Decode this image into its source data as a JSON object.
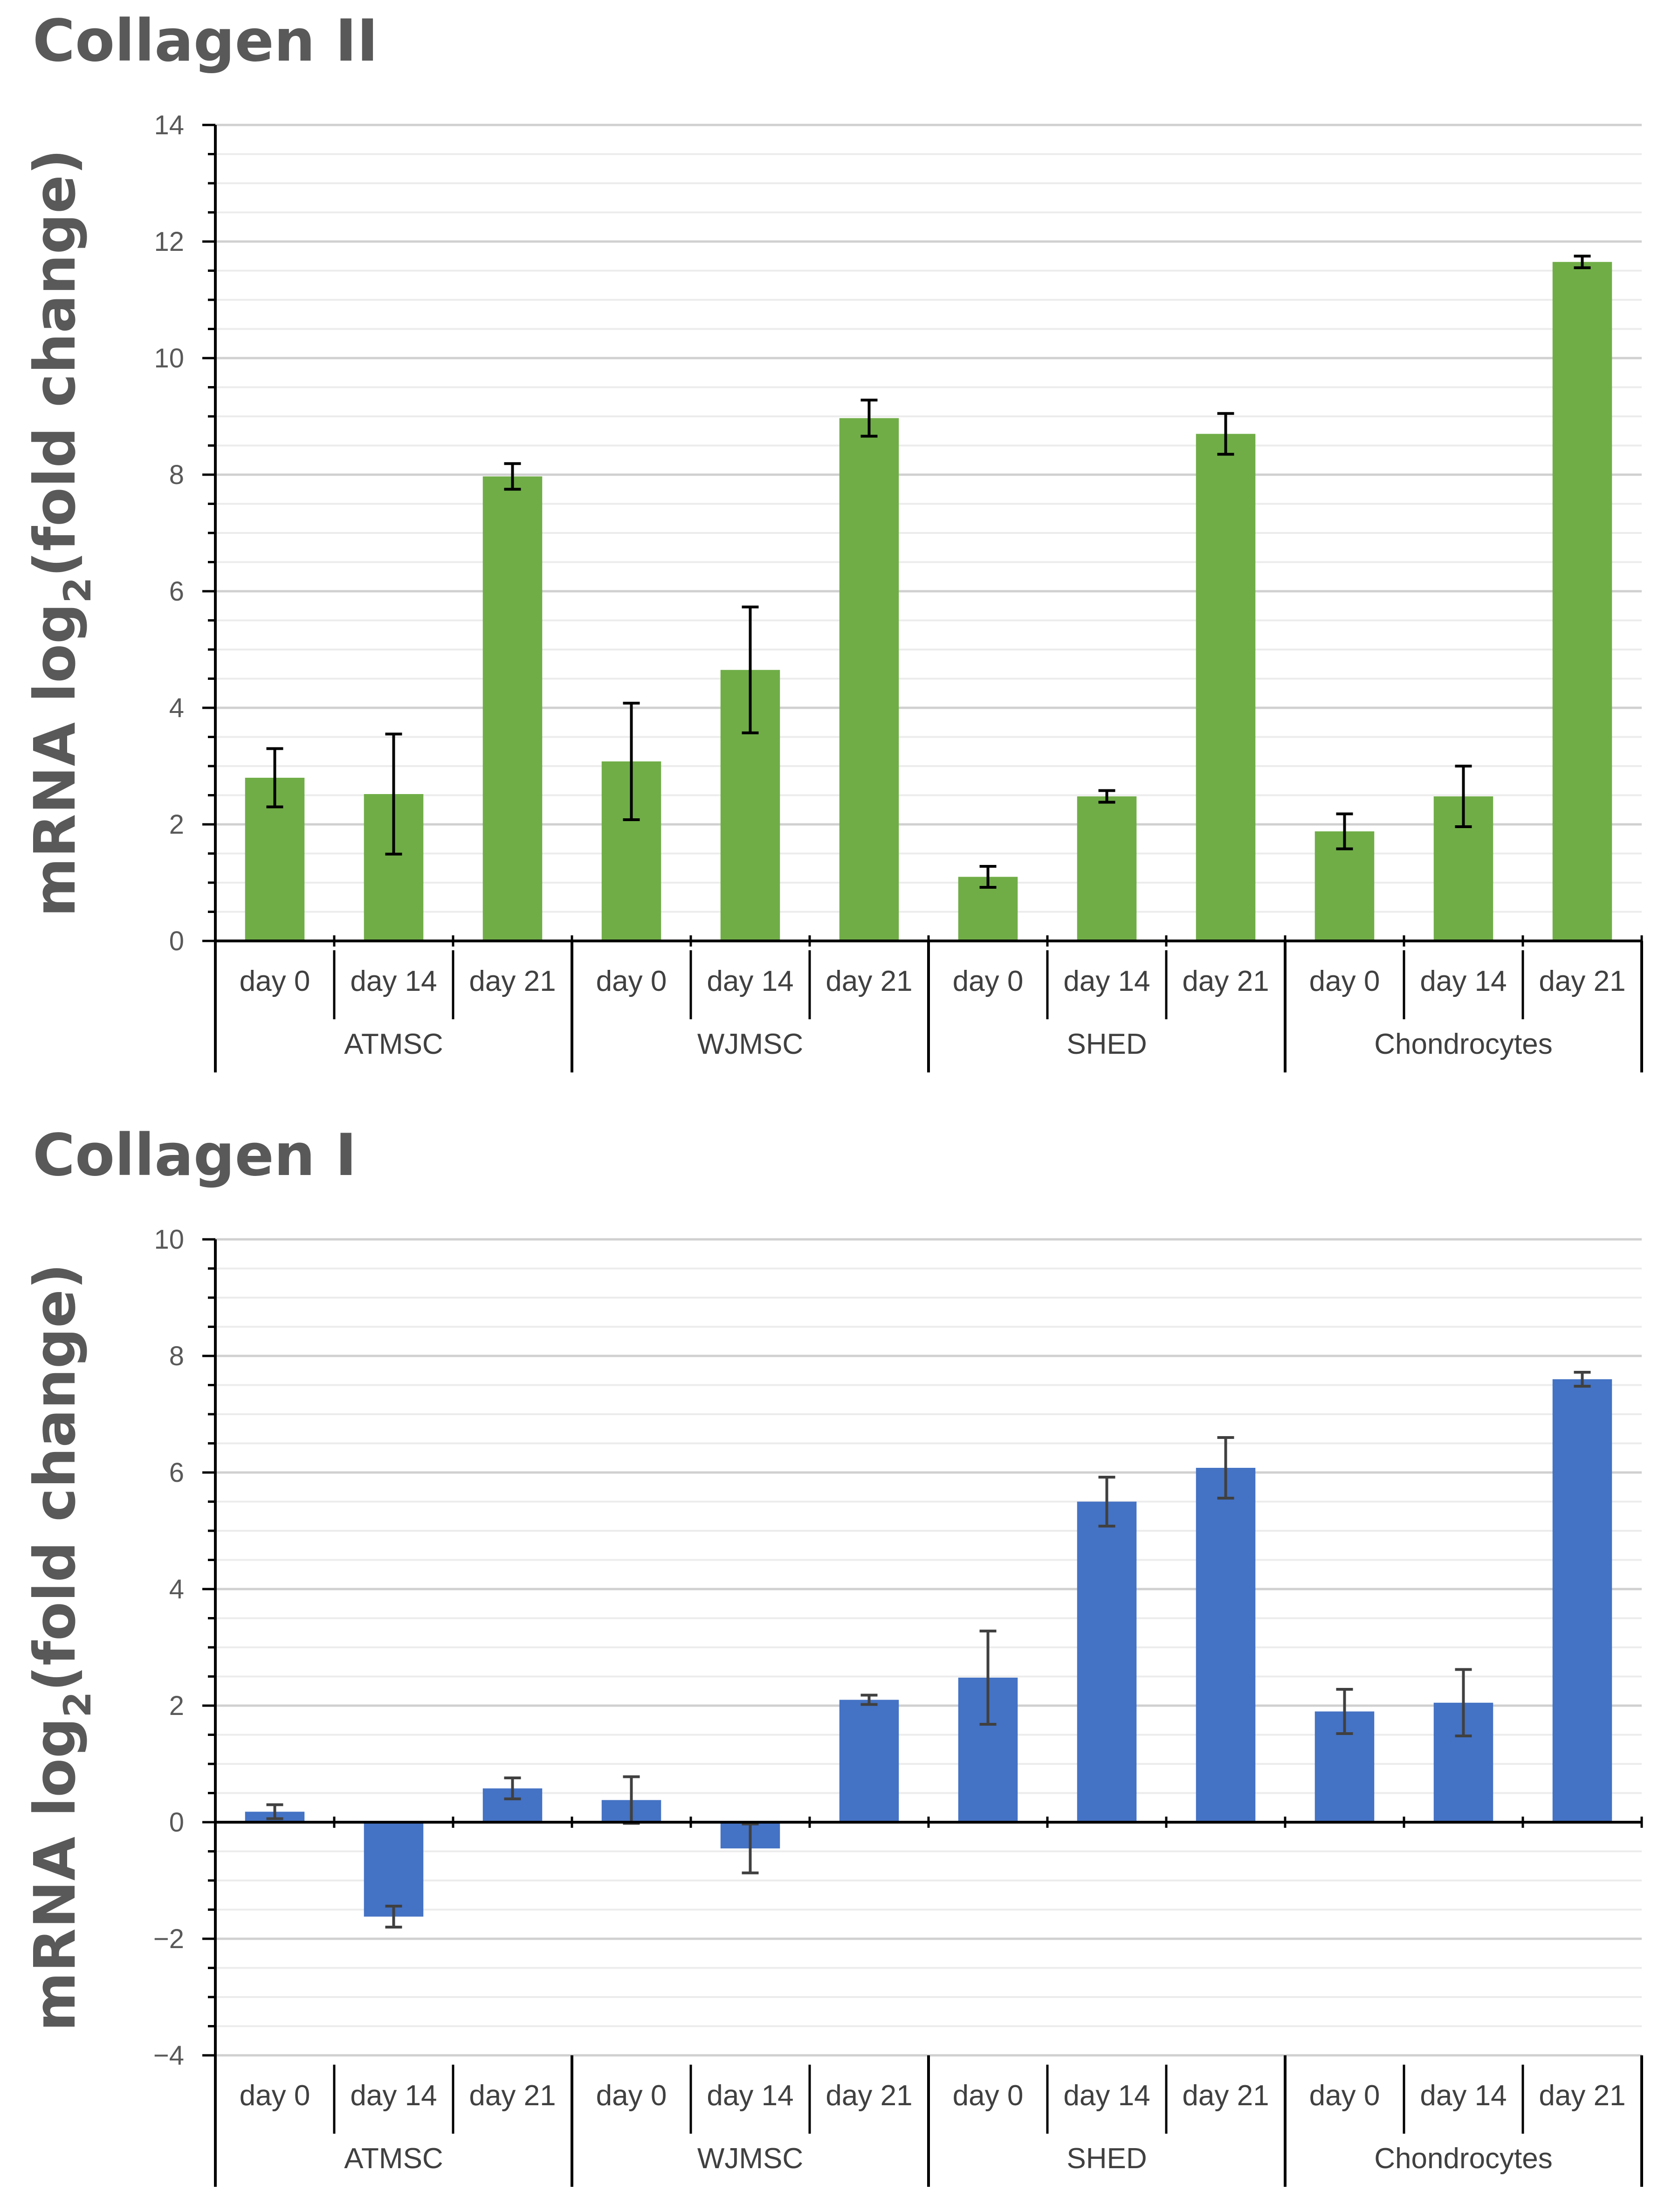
{
  "colors": {
    "green": "#70ad47",
    "blue": "#4472c4",
    "axis": "#000000",
    "grid": "#d9d9d9",
    "text": "#595959"
  },
  "chart_data": [
    {
      "type": "bar",
      "title": "Collagen II",
      "ylabel_main": "mRNA log",
      "ylabel_sub": "2",
      "ylabel_tail": "(fold change)",
      "ylim": [
        0,
        14
      ],
      "yticks": [
        0,
        2,
        4,
        6,
        8,
        10,
        12,
        14
      ],
      "yticks_label": [
        "0",
        "2",
        "4",
        "6",
        "8",
        "10",
        "12",
        "14"
      ],
      "groups": [
        "ATMSC",
        "WJMSC",
        "SHED",
        "Chondrocytes"
      ],
      "categories": [
        "day 0",
        "day 14",
        "day 21",
        "day 0",
        "day 14",
        "day 21",
        "day 0",
        "day 14",
        "day 21",
        "day 0",
        "day 14",
        "day 21"
      ],
      "values": [
        2.8,
        2.52,
        7.97,
        3.08,
        4.65,
        8.97,
        1.1,
        2.48,
        8.7,
        1.88,
        2.48,
        11.65
      ],
      "errors": [
        0.5,
        1.03,
        0.22,
        1.0,
        1.08,
        0.31,
        0.18,
        0.1,
        0.35,
        0.3,
        0.52,
        0.1
      ],
      "color": "#70ad47",
      "error_color": "#000000"
    },
    {
      "type": "bar",
      "title": "Collagen I",
      "ylabel_main": "mRNA log",
      "ylabel_sub": "2",
      "ylabel_tail": "(fold change)",
      "ylim": [
        -4,
        10
      ],
      "yticks": [
        -4,
        -2,
        0,
        2,
        4,
        6,
        8,
        10
      ],
      "yticks_label": [
        "−4",
        "−2",
        "0",
        "2",
        "4",
        "6",
        "8",
        "10"
      ],
      "groups": [
        "ATMSC",
        "WJMSC",
        "SHED",
        "Chondrocytes"
      ],
      "categories": [
        "day 0",
        "day 14",
        "day 21",
        "day 0",
        "day 14",
        "day 21",
        "day 0",
        "day 14",
        "day 21",
        "day 0",
        "day 14",
        "day 21"
      ],
      "values": [
        0.18,
        -1.62,
        0.58,
        0.38,
        -0.45,
        2.1,
        2.48,
        5.5,
        6.08,
        1.9,
        2.05,
        7.6
      ],
      "errors": [
        0.12,
        0.18,
        0.18,
        0.4,
        0.42,
        0.08,
        0.8,
        0.42,
        0.52,
        0.38,
        0.57,
        0.12
      ],
      "color": "#4472c4",
      "error_color": "#404040"
    }
  ]
}
